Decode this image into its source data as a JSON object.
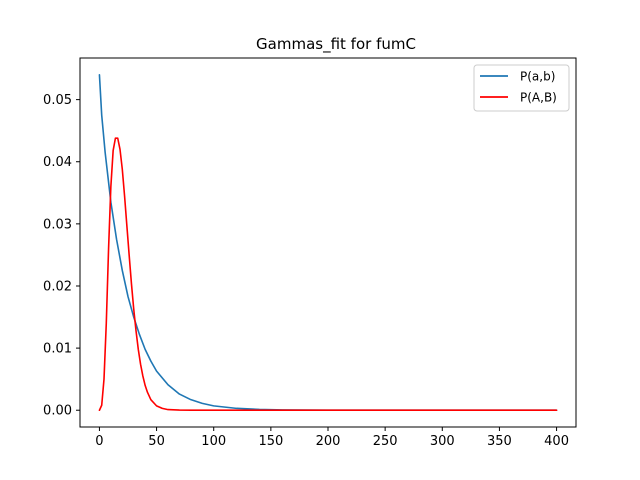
{
  "chart_data": {
    "type": "line",
    "title": "Gammas_fit for fumC",
    "xlabel": "",
    "ylabel": "",
    "xlim": [
      -17,
      417
    ],
    "ylim": [
      -0.0027,
      0.0567
    ],
    "xticks": [
      0,
      50,
      100,
      150,
      200,
      250,
      300,
      350,
      400
    ],
    "xtick_labels": [
      "0",
      "50",
      "100",
      "150",
      "200",
      "250",
      "300",
      "350",
      "400"
    ],
    "yticks": [
      0.0,
      0.01,
      0.02,
      0.03,
      0.04,
      0.05
    ],
    "ytick_labels": [
      "0.00",
      "0.01",
      "0.02",
      "0.03",
      "0.04",
      "0.05"
    ],
    "grid": false,
    "legend": "top-right",
    "series": [
      {
        "name": "P(a,b)",
        "color": "#1f77b4",
        "x": [
          0,
          2,
          5,
          10,
          15,
          20,
          25,
          30,
          35,
          40,
          45,
          50,
          60,
          70,
          80,
          90,
          100,
          120,
          140,
          160,
          200,
          250,
          300,
          350,
          400
        ],
        "y": [
          0.054,
          0.0475,
          0.0415,
          0.0335,
          0.0275,
          0.0225,
          0.0183,
          0.015,
          0.0122,
          0.0098,
          0.0079,
          0.0063,
          0.0041,
          0.0026,
          0.0017,
          0.0011,
          0.0007,
          0.0003,
          0.00013,
          5e-05,
          1e-05,
          0.0,
          0.0,
          0.0,
          0.0
        ]
      },
      {
        "name": "P(A,B)",
        "color": "#ff0000",
        "x": [
          0,
          2,
          4,
          6,
          8,
          10,
          12,
          14,
          16,
          18,
          20,
          22,
          24,
          26,
          28,
          30,
          32,
          34,
          36,
          38,
          40,
          42,
          45,
          50,
          55,
          60,
          70,
          80,
          100,
          150,
          200,
          250,
          300,
          350,
          400
        ],
        "y": [
          0.0,
          0.0008,
          0.005,
          0.014,
          0.026,
          0.036,
          0.0418,
          0.0438,
          0.0438,
          0.042,
          0.0388,
          0.0345,
          0.0297,
          0.025,
          0.0204,
          0.0163,
          0.0128,
          0.0098,
          0.0074,
          0.0055,
          0.004,
          0.0029,
          0.0017,
          0.0007,
          0.0003,
          0.0001,
          2e-05,
          0.0,
          0.0,
          0.0,
          0.0,
          0.0,
          0.0,
          0.0,
          0.0
        ]
      }
    ]
  }
}
